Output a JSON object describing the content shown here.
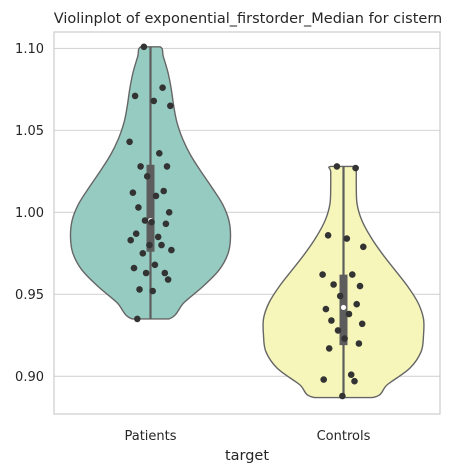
{
  "chart_data": {
    "type": "violin",
    "title": "Violinplot of exponential_firstorder_Median for cistern",
    "xlabel": "target",
    "ylabel": "",
    "categories": [
      "Patients",
      "Controls"
    ],
    "ylim": [
      0.877,
      1.11
    ],
    "yticks": [
      0.9,
      0.95,
      1.0,
      1.05,
      1.1
    ],
    "ytick_labels": [
      "0.90",
      "0.95",
      "1.00",
      "1.05",
      "1.10"
    ],
    "grid": "horizontal",
    "colors": {
      "Patients": "#96cbc1",
      "Controls": "#f6f6bb",
      "outline": "#666666",
      "points": "#333333",
      "box": "#5d5d5d"
    },
    "series": [
      {
        "category": "Patients",
        "summary": {
          "min": 0.935,
          "q1": 0.976,
          "median": 0.995,
          "q3": 1.029,
          "max": 1.101
        },
        "points": [
          1.101,
          1.076,
          1.071,
          1.068,
          1.065,
          1.043,
          1.036,
          1.028,
          1.028,
          1.022,
          1.013,
          1.012,
          1.01,
          1.003,
          1.0,
          0.995,
          0.994,
          0.993,
          0.987,
          0.985,
          0.983,
          0.98,
          0.98,
          0.977,
          0.975,
          0.968,
          0.966,
          0.963,
          0.963,
          0.959,
          0.953,
          0.952,
          0.935
        ],
        "violin_profile": [
          {
            "y": 0.935,
            "w": 0.23
          },
          {
            "y": 0.945,
            "w": 0.42
          },
          {
            "y": 0.955,
            "w": 0.66
          },
          {
            "y": 0.965,
            "w": 0.86
          },
          {
            "y": 0.975,
            "w": 0.97
          },
          {
            "y": 0.985,
            "w": 1.0
          },
          {
            "y": 0.995,
            "w": 0.98
          },
          {
            "y": 1.005,
            "w": 0.9
          },
          {
            "y": 1.015,
            "w": 0.77
          },
          {
            "y": 1.025,
            "w": 0.63
          },
          {
            "y": 1.035,
            "w": 0.5
          },
          {
            "y": 1.045,
            "w": 0.4
          },
          {
            "y": 1.055,
            "w": 0.33
          },
          {
            "y": 1.065,
            "w": 0.29
          },
          {
            "y": 1.075,
            "w": 0.26
          },
          {
            "y": 1.085,
            "w": 0.22
          },
          {
            "y": 1.095,
            "w": 0.16
          },
          {
            "y": 1.101,
            "w": 0.12
          }
        ]
      },
      {
        "category": "Controls",
        "summary": {
          "min": 0.887,
          "q1": 0.919,
          "median": 0.942,
          "q3": 0.962,
          "max": 1.028
        },
        "points": [
          1.028,
          1.027,
          0.986,
          0.984,
          0.979,
          0.962,
          0.962,
          0.956,
          0.955,
          0.949,
          0.944,
          0.941,
          0.938,
          0.934,
          0.932,
          0.928,
          0.923,
          0.92,
          0.917,
          0.901,
          0.898,
          0.897,
          0.888
        ],
        "violin_profile": [
          {
            "y": 0.887,
            "w": 0.36
          },
          {
            "y": 0.895,
            "w": 0.55
          },
          {
            "y": 0.905,
            "w": 0.83
          },
          {
            "y": 0.915,
            "w": 0.97
          },
          {
            "y": 0.925,
            "w": 1.0
          },
          {
            "y": 0.935,
            "w": 1.0
          },
          {
            "y": 0.945,
            "w": 0.93
          },
          {
            "y": 0.955,
            "w": 0.8
          },
          {
            "y": 0.965,
            "w": 0.64
          },
          {
            "y": 0.975,
            "w": 0.48
          },
          {
            "y": 0.985,
            "w": 0.34
          },
          {
            "y": 0.995,
            "w": 0.23
          },
          {
            "y": 1.005,
            "w": 0.17
          },
          {
            "y": 1.015,
            "w": 0.16
          },
          {
            "y": 1.025,
            "w": 0.16
          },
          {
            "y": 1.028,
            "w": 0.16
          }
        ]
      }
    ]
  }
}
